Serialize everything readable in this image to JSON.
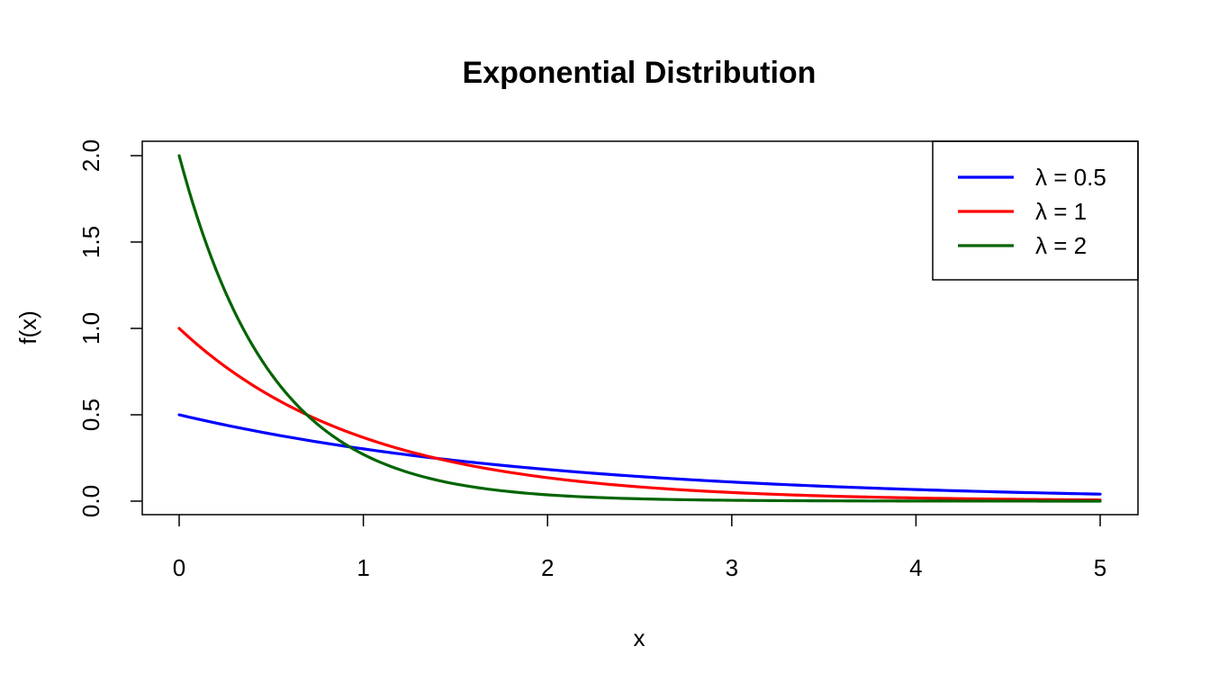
{
  "chart_data": {
    "type": "line",
    "title": "Exponential Distribution",
    "xlabel": "x",
    "ylabel": "f(x)",
    "xlim": [
      0,
      5
    ],
    "ylim": [
      0,
      2
    ],
    "x_ticks": [
      "0",
      "1",
      "2",
      "3",
      "4",
      "5"
    ],
    "y_ticks": [
      "0.0",
      "0.5",
      "1.0",
      "1.5",
      "2.0"
    ],
    "grid": false,
    "legend_position": "top-right",
    "series": [
      {
        "name": "λ = 0.5",
        "color": "#0000ff",
        "x": [
          0,
          0.5,
          1,
          1.5,
          2,
          2.5,
          3,
          3.5,
          4,
          4.5,
          5
        ],
        "y": [
          0.5,
          0.389,
          0.303,
          0.236,
          0.184,
          0.143,
          0.112,
          0.087,
          0.068,
          0.053,
          0.041
        ]
      },
      {
        "name": "λ = 1",
        "color": "#ff0000",
        "x": [
          0,
          0.5,
          1,
          1.5,
          2,
          2.5,
          3,
          3.5,
          4,
          4.5,
          5
        ],
        "y": [
          1.0,
          0.607,
          0.368,
          0.223,
          0.135,
          0.082,
          0.05,
          0.03,
          0.018,
          0.011,
          0.007
        ]
      },
      {
        "name": "λ = 2",
        "color": "#006400",
        "x": [
          0,
          0.25,
          0.5,
          0.75,
          1,
          1.5,
          2,
          2.5,
          3,
          3.5,
          4,
          4.5,
          5
        ],
        "y": [
          2.0,
          1.213,
          0.736,
          0.446,
          0.271,
          0.1,
          0.037,
          0.013,
          0.005,
          0.002,
          0.001,
          0.0,
          0.0
        ]
      }
    ]
  }
}
